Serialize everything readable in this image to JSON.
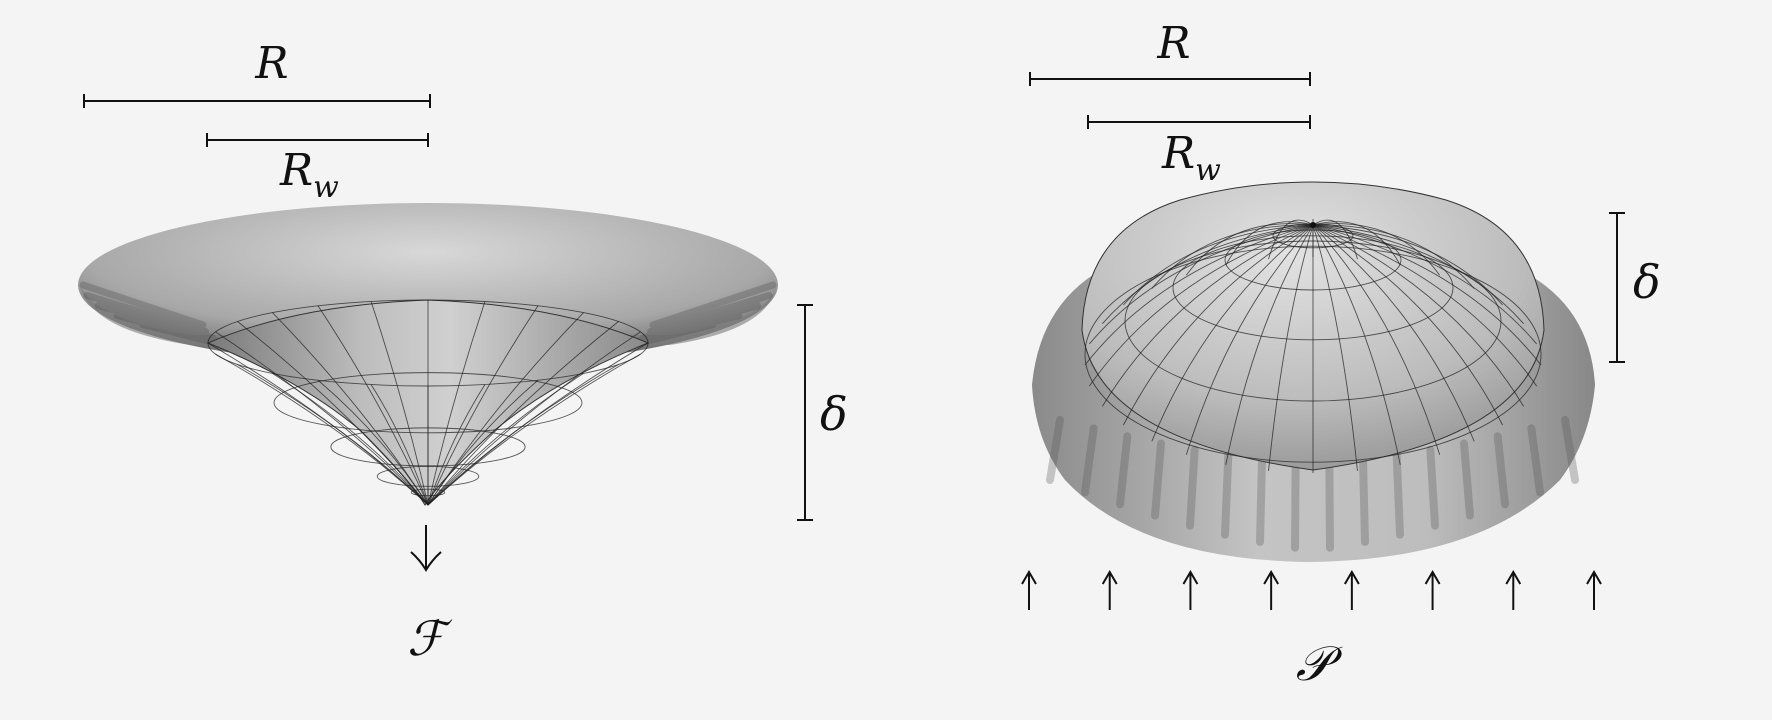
{
  "left_panel": {
    "radius_label": "R",
    "inner_radius_label": "R",
    "inner_radius_sub": "w",
    "deflection_label": "δ",
    "load_label": "ℱ"
  },
  "right_panel": {
    "radius_label": "R",
    "inner_radius_label": "R",
    "inner_radius_sub": "w",
    "deflection_label": "δ",
    "load_label": "𝒫",
    "pressure_arrow_count": 8
  },
  "colors": {
    "background": "#f4f4f4",
    "ink": "#111111",
    "surface_light": "#d6d6d6",
    "surface_dark": "#6e6e6e"
  }
}
